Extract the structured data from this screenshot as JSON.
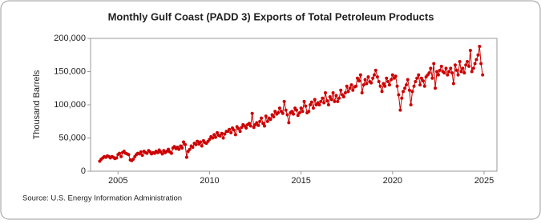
{
  "chart_data": {
    "type": "line",
    "title": "Monthly Gulf Coast (PADD 3) Exports of Total Petroleum Products",
    "y_label": "Thousand Barrels",
    "source": "Source: U.S. Energy Information Administration",
    "xlim": [
      2003.5,
      2025.7
    ],
    "xticks": [
      2005,
      2010,
      2015,
      2020,
      2025
    ],
    "ylim": [
      0,
      200000
    ],
    "yticks": [
      0,
      {
        "value": 50000,
        "label": "50,000"
      },
      {
        "value": 100000,
        "label": "100,000"
      },
      {
        "value": 150000,
        "label": "150,000"
      },
      {
        "value": 200000,
        "label": "200,000"
      }
    ],
    "grid": false,
    "markers": true,
    "x": [
      2004,
      2004.08,
      2004.17,
      2004.25,
      2004.33,
      2004.42,
      2004.5,
      2004.58,
      2004.67,
      2004.75,
      2004.83,
      2004.92,
      2005,
      2005.08,
      2005.17,
      2005.25,
      2005.33,
      2005.42,
      2005.5,
      2005.58,
      2005.67,
      2005.75,
      2005.83,
      2005.92,
      2006,
      2006.08,
      2006.17,
      2006.25,
      2006.33,
      2006.42,
      2006.5,
      2006.58,
      2006.67,
      2006.75,
      2006.83,
      2006.92,
      2007,
      2007.08,
      2007.17,
      2007.25,
      2007.33,
      2007.42,
      2007.5,
      2007.58,
      2007.67,
      2007.75,
      2007.83,
      2007.92,
      2008,
      2008.08,
      2008.17,
      2008.25,
      2008.33,
      2008.42,
      2008.5,
      2008.58,
      2008.67,
      2008.75,
      2008.83,
      2008.92,
      2009,
      2009.08,
      2009.17,
      2009.25,
      2009.33,
      2009.42,
      2009.5,
      2009.58,
      2009.67,
      2009.75,
      2009.83,
      2009.92,
      2010,
      2010.08,
      2010.17,
      2010.25,
      2010.33,
      2010.42,
      2010.5,
      2010.58,
      2010.67,
      2010.75,
      2010.83,
      2010.92,
      2011,
      2011.08,
      2011.17,
      2011.25,
      2011.33,
      2011.42,
      2011.5,
      2011.58,
      2011.67,
      2011.75,
      2011.83,
      2011.92,
      2012,
      2012.08,
      2012.17,
      2012.25,
      2012.33,
      2012.42,
      2012.5,
      2012.58,
      2012.67,
      2012.75,
      2012.83,
      2012.92,
      2013,
      2013.08,
      2013.17,
      2013.25,
      2013.33,
      2013.42,
      2013.5,
      2013.58,
      2013.67,
      2013.75,
      2013.83,
      2013.92,
      2014,
      2014.08,
      2014.17,
      2014.25,
      2014.33,
      2014.42,
      2014.5,
      2014.58,
      2014.67,
      2014.75,
      2014.83,
      2014.92,
      2015,
      2015.08,
      2015.17,
      2015.25,
      2015.33,
      2015.42,
      2015.5,
      2015.58,
      2015.67,
      2015.75,
      2015.83,
      2015.92,
      2016,
      2016.08,
      2016.17,
      2016.25,
      2016.33,
      2016.42,
      2016.5,
      2016.58,
      2016.67,
      2016.75,
      2016.83,
      2016.92,
      2017,
      2017.08,
      2017.17,
      2017.25,
      2017.33,
      2017.42,
      2017.5,
      2017.58,
      2017.67,
      2017.75,
      2017.83,
      2017.92,
      2018,
      2018.08,
      2018.17,
      2018.25,
      2018.33,
      2018.42,
      2018.5,
      2018.58,
      2018.67,
      2018.75,
      2018.83,
      2018.92,
      2019,
      2019.08,
      2019.17,
      2019.25,
      2019.33,
      2019.42,
      2019.5,
      2019.58,
      2019.67,
      2019.75,
      2019.83,
      2019.92,
      2020,
      2020.08,
      2020.17,
      2020.25,
      2020.33,
      2020.42,
      2020.5,
      2020.58,
      2020.67,
      2020.75,
      2020.83,
      2020.92,
      2021,
      2021.08,
      2021.17,
      2021.25,
      2021.33,
      2021.42,
      2021.5,
      2021.58,
      2021.67,
      2021.75,
      2021.83,
      2021.92,
      2022,
      2022.08,
      2022.17,
      2022.25,
      2022.33,
      2022.42,
      2022.5,
      2022.58,
      2022.67,
      2022.75,
      2022.83,
      2022.92,
      2023,
      2023.08,
      2023.17,
      2023.25,
      2023.33,
      2023.42,
      2023.5,
      2023.58,
      2023.67,
      2023.75,
      2023.83,
      2023.92,
      2024,
      2024.08,
      2024.17,
      2024.25,
      2024.33,
      2024.42,
      2024.5,
      2024.58,
      2024.67,
      2024.75,
      2024.83,
      2024.92
    ],
    "series": [
      {
        "color": "#cc0000",
        "values": [
          15000,
          18000,
          20000,
          22000,
          21000,
          23000,
          22000,
          20000,
          22000,
          21000,
          19000,
          20000,
          25000,
          27000,
          22000,
          28000,
          30000,
          27000,
          26000,
          25000,
          17000,
          16000,
          18000,
          22000,
          25000,
          27000,
          26000,
          29000,
          24000,
          30000,
          28000,
          27000,
          31000,
          29000,
          26000,
          28000,
          27000,
          30000,
          28000,
          32000,
          29000,
          26000,
          31000,
          28000,
          30000,
          33000,
          29000,
          27000,
          35000,
          37000,
          34000,
          36000,
          33000,
          38000,
          35000,
          44000,
          40000,
          21000,
          30000,
          33000,
          38000,
          36000,
          42000,
          40000,
          45000,
          41000,
          44000,
          38000,
          46000,
          43000,
          42000,
          45000,
          48000,
          52000,
          50000,
          55000,
          51000,
          58000,
          54000,
          53000,
          57000,
          50000,
          56000,
          60000,
          60000,
          63000,
          58000,
          65000,
          62000,
          55000,
          67000,
          64000,
          60000,
          66000,
          70000,
          68000,
          65000,
          70000,
          72000,
          68000,
          87000,
          66000,
          70000,
          73000,
          69000,
          75000,
          80000,
          72000,
          68000,
          83000,
          75000,
          80000,
          78000,
          85000,
          82000,
          90000,
          86000,
          88000,
          95000,
          90000,
          87000,
          105000,
          92000,
          85000,
          73000,
          88000,
          90000,
          86000,
          95000,
          92000,
          84000,
          88000,
          95000,
          90000,
          105000,
          98000,
          88000,
          90000,
          100000,
          104000,
          95000,
          108000,
          100000,
          103000,
          100000,
          105000,
          110000,
          103000,
          118000,
          106000,
          100000,
          112000,
          108000,
          118000,
          105000,
          114000,
          105000,
          110000,
          122000,
          115000,
          112000,
          118000,
          128000,
          120000,
          125000,
          130000,
          122000,
          127000,
          128000,
          140000,
          136000,
          145000,
          118000,
          130000,
          138000,
          132000,
          142000,
          135000,
          133000,
          140000,
          145000,
          152000,
          142000,
          135000,
          128000,
          120000,
          132000,
          128000,
          140000,
          135000,
          130000,
          138000,
          145000,
          140000,
          143000,
          128000,
          115000,
          92000,
          110000,
          120000,
          125000,
          130000,
          138000,
          122000,
          100000,
          120000,
          128000,
          135000,
          140000,
          145000,
          130000,
          140000,
          136000,
          128000,
          142000,
          145000,
          148000,
          155000,
          140000,
          162000,
          125000,
          150000,
          145000,
          152000,
          158000,
          150000,
          148000,
          155000,
          145000,
          150000,
          155000,
          148000,
          132000,
          160000,
          152000,
          145000,
          165000,
          150000,
          155000,
          148000,
          160000,
          165000,
          158000,
          182000,
          150000,
          155000,
          162000,
          168000,
          175000,
          188000,
          162000,
          145000
        ]
      }
    ]
  }
}
